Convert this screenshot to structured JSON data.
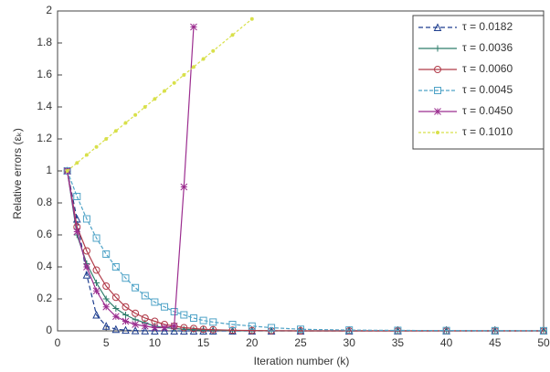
{
  "chart_data": {
    "type": "line",
    "xlabel": "Iteration number (k)",
    "ylabel": "Relative errors (εₖ)",
    "x": [
      1,
      2,
      3,
      4,
      5,
      6,
      7,
      8,
      9,
      10,
      11,
      12,
      13,
      14,
      15,
      16,
      18,
      20,
      22,
      25,
      30,
      35,
      40,
      45,
      50
    ],
    "xlim": [
      0,
      50
    ],
    "xticks": [
      0,
      5,
      10,
      15,
      20,
      25,
      30,
      35,
      40,
      45,
      50
    ],
    "ylim": [
      0,
      2
    ],
    "yticks": [
      0,
      0.2,
      0.4,
      0.6,
      0.8,
      1,
      1.2,
      1.4,
      1.6,
      1.8,
      2
    ],
    "legend": "upper right",
    "series": [
      {
        "name": "τ = 0.0182",
        "color": "#1f3f8f",
        "marker": "triangle",
        "dash": "5,3",
        "values": [
          1,
          0.7,
          0.35,
          0.1,
          0.03,
          0.01,
          0.005,
          0.002,
          0.001,
          0,
          0,
          0,
          0,
          0,
          0,
          0,
          0,
          0,
          0,
          0,
          0,
          0,
          0,
          0,
          0
        ]
      },
      {
        "name": "τ = 0.0036",
        "color": "#2e7d6b",
        "marker": "plus",
        "dash": "",
        "values": [
          1,
          0.6,
          0.42,
          0.3,
          0.2,
          0.14,
          0.1,
          0.07,
          0.05,
          0.03,
          0.02,
          0.015,
          0.01,
          0.007,
          0.005,
          0.004,
          0.002,
          0.001,
          0,
          0,
          0,
          0,
          0,
          0,
          0
        ]
      },
      {
        "name": "τ = 0.0060",
        "color": "#b03a48",
        "marker": "circle",
        "dash": "",
        "values": [
          1,
          0.65,
          0.5,
          0.38,
          0.28,
          0.21,
          0.15,
          0.11,
          0.08,
          0.06,
          0.04,
          0.03,
          0.02,
          0.015,
          0.01,
          0.007,
          0.004,
          0.002,
          0.001,
          0,
          0,
          0,
          0,
          0,
          0
        ]
      },
      {
        "name": "τ = 0.0045",
        "color": "#4fa3c7",
        "marker": "square",
        "dash": "4,2",
        "values": [
          1,
          0.84,
          0.7,
          0.58,
          0.48,
          0.4,
          0.33,
          0.27,
          0.22,
          0.18,
          0.15,
          0.12,
          0.1,
          0.08,
          0.065,
          0.055,
          0.04,
          0.03,
          0.02,
          0.01,
          0.005,
          0.003,
          0.002,
          0.001,
          0.001
        ]
      },
      {
        "name": "τ = 0.0450",
        "color": "#9b2d8f",
        "marker": "star",
        "dash": "",
        "values": [
          1,
          0.62,
          0.4,
          0.25,
          0.15,
          0.09,
          0.06,
          0.04,
          0.03,
          0.02,
          0.02,
          0.03,
          0.9,
          1.9,
          null,
          null,
          null,
          null,
          null,
          null,
          null,
          null,
          null,
          null,
          null
        ]
      },
      {
        "name": "τ = 0.1010",
        "color": "#d8e04a",
        "marker": "dot",
        "dash": "3,2",
        "values": [
          1,
          1.05,
          1.1,
          1.15,
          1.2,
          1.25,
          1.3,
          1.35,
          1.4,
          1.45,
          1.5,
          1.55,
          1.6,
          1.65,
          1.7,
          1.75,
          1.85,
          1.95,
          null,
          null,
          null,
          null,
          null,
          null,
          null
        ]
      }
    ]
  }
}
